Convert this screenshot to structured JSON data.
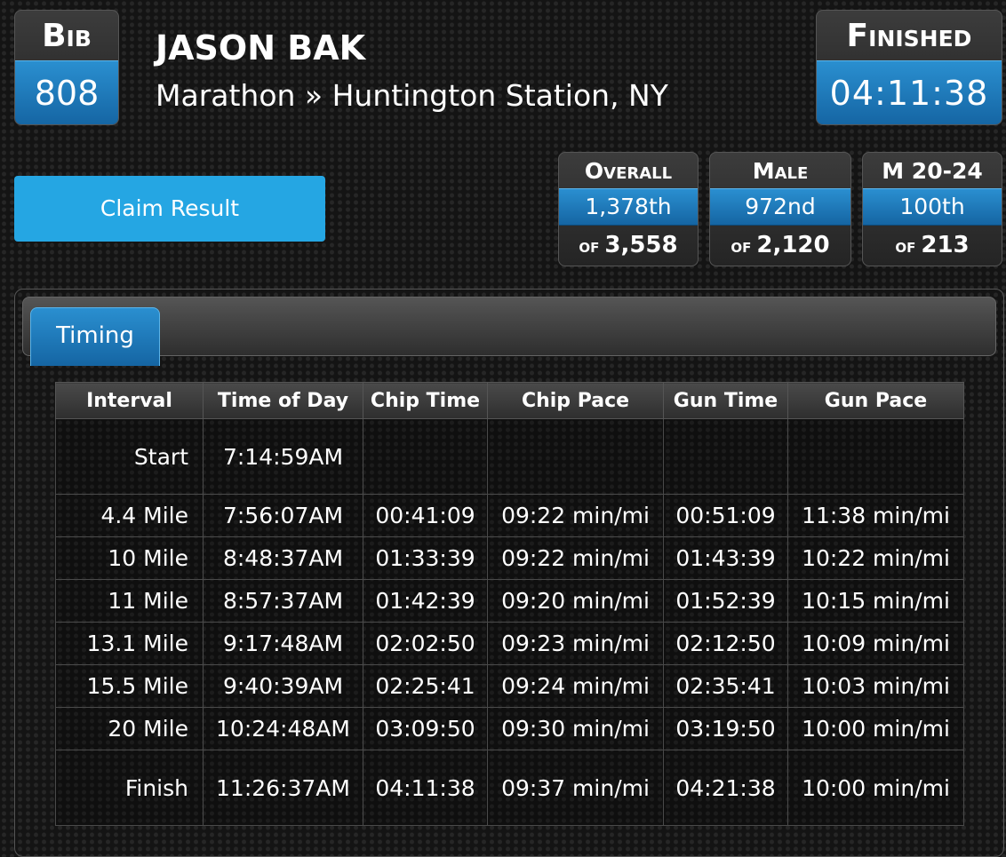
{
  "bib": {
    "label": "Bib",
    "value": "808"
  },
  "runner": {
    "name": "JASON BAK",
    "race": "Marathon » Huntington Station, NY"
  },
  "finished": {
    "label": "Finished",
    "value": "04:11:38"
  },
  "claim_button": "Claim Result",
  "rankings": [
    {
      "label": "Overall",
      "place": "1,378th",
      "of_word": "of",
      "of_total": "3,558"
    },
    {
      "label": "Male",
      "place": "972nd",
      "of_word": "of",
      "of_total": "2,120"
    },
    {
      "label": "M 20-24",
      "place": "100th",
      "of_word": "of",
      "of_total": "213"
    }
  ],
  "tabs": [
    {
      "label": "Timing"
    }
  ],
  "splits": {
    "headers": [
      "Interval",
      "Time of Day",
      "Chip Time",
      "Chip Pace",
      "Gun Time",
      "Gun Pace"
    ],
    "rows": [
      [
        "Start",
        "7:14:59AM",
        "",
        "",
        "",
        ""
      ],
      [
        "4.4 Mile",
        "7:56:07AM",
        "00:41:09",
        "09:22 min/mi",
        "00:51:09",
        "11:38 min/mi"
      ],
      [
        "10 Mile",
        "8:48:37AM",
        "01:33:39",
        "09:22 min/mi",
        "01:43:39",
        "10:22 min/mi"
      ],
      [
        "11 Mile",
        "8:57:37AM",
        "01:42:39",
        "09:20 min/mi",
        "01:52:39",
        "10:15 min/mi"
      ],
      [
        "13.1 Mile",
        "9:17:48AM",
        "02:02:50",
        "09:23 min/mi",
        "02:12:50",
        "10:09 min/mi"
      ],
      [
        "15.5 Mile",
        "9:40:39AM",
        "02:25:41",
        "09:24 min/mi",
        "02:35:41",
        "10:03 min/mi"
      ],
      [
        "20 Mile",
        "10:24:48AM",
        "03:09:50",
        "09:30 min/mi",
        "03:19:50",
        "10:00 min/mi"
      ],
      [
        "Finish",
        "11:26:37AM",
        "04:11:38",
        "09:37 min/mi",
        "04:21:38",
        "10:00 min/mi"
      ]
    ]
  },
  "colors": {
    "accent_blue": "#1f7fc0",
    "claim_blue": "#25a6e3",
    "background": "#141414"
  }
}
